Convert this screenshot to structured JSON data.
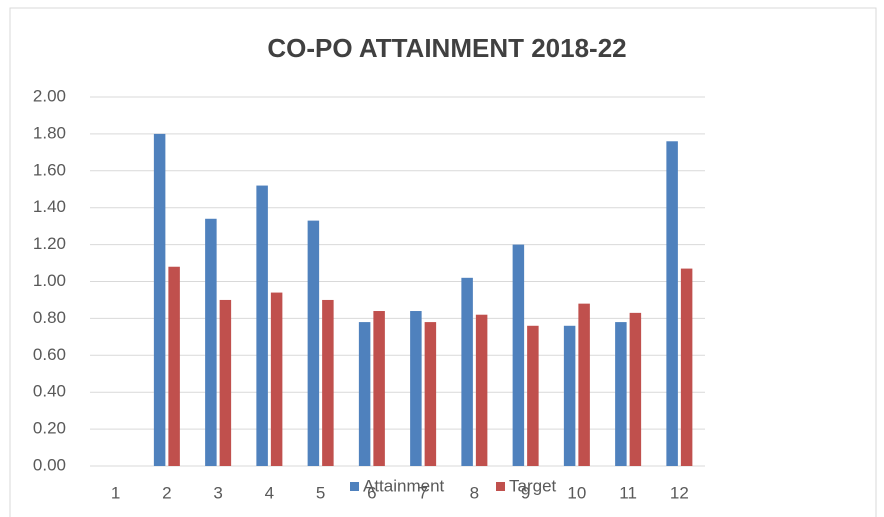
{
  "chart_data": {
    "type": "bar",
    "title": "CO-PO ATTAINMENT 2018-22",
    "categories": [
      "1",
      "2",
      "3",
      "4",
      "5",
      "6",
      "7",
      "8",
      "9",
      "10",
      "11",
      "12"
    ],
    "series": [
      {
        "name": "Attainment",
        "color": "#4f81bd",
        "values": [
          0,
          1.8,
          1.34,
          1.52,
          1.33,
          0.78,
          0.84,
          1.02,
          1.2,
          0.76,
          0.78,
          1.76
        ]
      },
      {
        "name": "Target",
        "color": "#c0504d",
        "values": [
          0,
          1.08,
          0.9,
          0.94,
          0.9,
          0.84,
          0.78,
          0.82,
          0.76,
          0.88,
          0.83,
          1.07
        ]
      }
    ],
    "ylim": [
      0,
      2
    ],
    "yticks": [
      {
        "value": 0,
        "label": "0.00"
      },
      {
        "value": 0.2,
        "label": "0.20"
      },
      {
        "value": 0.4,
        "label": "0.40"
      },
      {
        "value": 0.6,
        "label": "0.60"
      },
      {
        "value": 0.8,
        "label": "0.80"
      },
      {
        "value": 1,
        "label": "1.00"
      },
      {
        "value": 1.2,
        "label": "1.20"
      },
      {
        "value": 1.4,
        "label": "1.40"
      },
      {
        "value": 1.6,
        "label": "1.60"
      },
      {
        "value": 1.8,
        "label": "1.80"
      },
      {
        "value": 2,
        "label": "2.00"
      }
    ],
    "grid": true,
    "legend": "bottom"
  }
}
